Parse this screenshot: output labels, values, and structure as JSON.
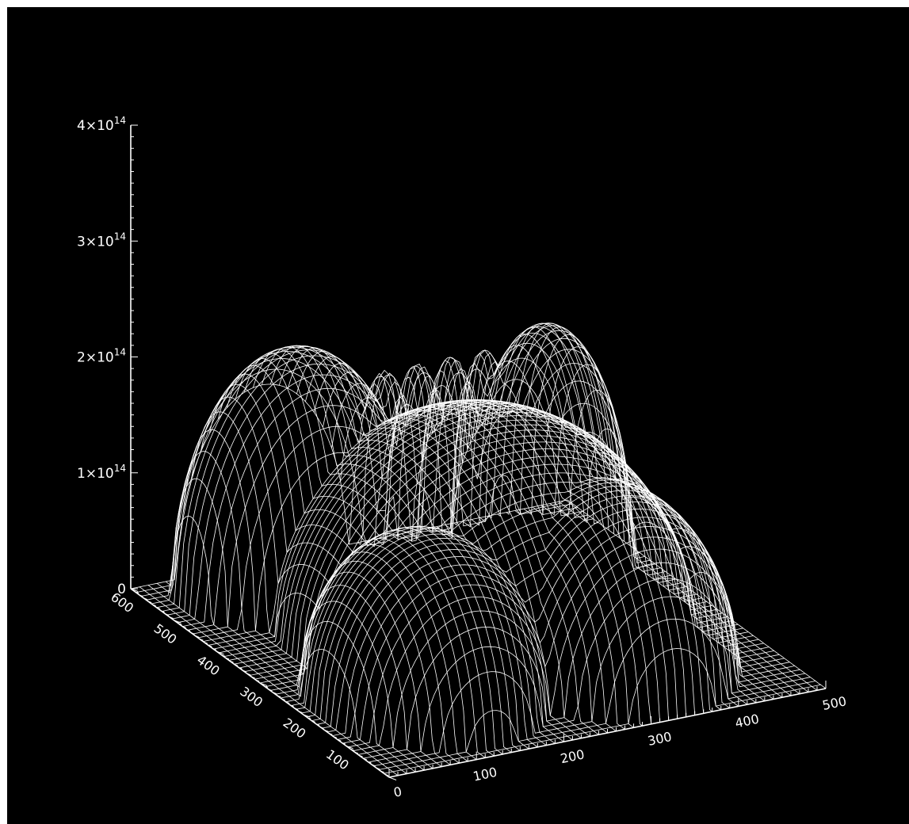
{
  "chart_data": {
    "type": "surface",
    "title": "",
    "background": "#000000",
    "line_color": "#ffffff",
    "grid": false,
    "z_axis": {
      "range": [
        0,
        400000000000000.0
      ],
      "tick_labels": [
        {
          "base": "0",
          "exp": "",
          "value": 0
        },
        {
          "base": "1×10",
          "exp": "14",
          "value": 100000000000000.0
        },
        {
          "base": "2×10",
          "exp": "14",
          "value": 200000000000000.0
        },
        {
          "base": "3×10",
          "exp": "14",
          "value": 300000000000000.0
        },
        {
          "base": "4×10",
          "exp": "14",
          "value": 400000000000000.0
        }
      ]
    },
    "x_axis": {
      "range": [
        0,
        500
      ],
      "tick_labels": [
        "0",
        "100",
        "200",
        "300",
        "400",
        "500"
      ]
    },
    "y_axis": {
      "range": [
        0,
        600
      ],
      "tick_labels": [
        "100",
        "200",
        "300",
        "400",
        "500",
        "600"
      ]
    },
    "surface": {
      "description_values": {
        "plateau_peak_z": 180000000000000.0,
        "back_left_lobe_peak_z": 205000000000000.0,
        "back_right_lobe_peak_z": 195000000000000.0,
        "small_back_lobes_peak_z": 170000000000000.0,
        "front_lobe_peak_z": 140000000000000.0,
        "baseline_z": 0
      }
    }
  }
}
